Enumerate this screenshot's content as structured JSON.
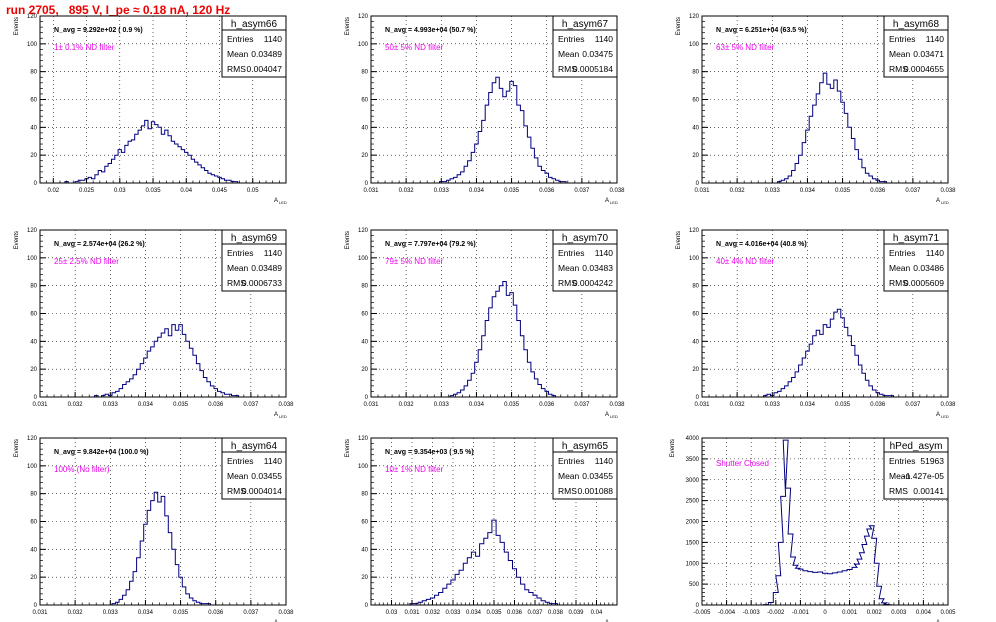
{
  "run_title": "run 2705,   895 V, I_pe ≈ 0.18 nA, 120 Hz",
  "colors": {
    "title": "#ee0000",
    "histogram": "#000080",
    "filter_label": "#ee00ee",
    "frame": "#000000",
    "grid": "#000000"
  },
  "axis_titles": {
    "y": "Events",
    "x": "A",
    "x_sub": "LED"
  },
  "stats_labels": {
    "entries": "Entries",
    "mean": "Mean",
    "rms": "RMS"
  },
  "chart_data": [
    {
      "type": "bar",
      "name": "h_asym66",
      "navg": "N_avg = 9.292e+02 ( 0.9 %)",
      "filter": "1± 0.1% ND filter",
      "stats": {
        "entries": "1140",
        "mean": "0.03489",
        "rms": "0.004047"
      },
      "xlim": [
        0.018,
        0.055
      ],
      "ylim": [
        0,
        120
      ],
      "xticks": [
        0.02,
        0.025,
        0.03,
        0.035,
        0.04,
        0.045,
        0.05
      ],
      "xtick_labels": [
        "0.02",
        "0.025",
        "0.03",
        "0.035",
        "0.04",
        "0.045",
        "0.05"
      ],
      "yticks": [
        0,
        20,
        40,
        60,
        80,
        100,
        120
      ],
      "grid": true,
      "x": [
        0.022,
        0.0225,
        0.023,
        0.0235,
        0.024,
        0.0245,
        0.025,
        0.0255,
        0.026,
        0.0265,
        0.027,
        0.0275,
        0.028,
        0.0285,
        0.029,
        0.0295,
        0.03,
        0.0305,
        0.031,
        0.0315,
        0.032,
        0.0325,
        0.033,
        0.0335,
        0.034,
        0.0345,
        0.035,
        0.0355,
        0.036,
        0.0365,
        0.037,
        0.0375,
        0.038,
        0.0385,
        0.039,
        0.0395,
        0.04,
        0.0405,
        0.041,
        0.0415,
        0.042,
        0.0425,
        0.043,
        0.0435,
        0.044,
        0.0445,
        0.045,
        0.0455,
        0.046,
        0.0465,
        0.047,
        0.0475,
        0.048
      ],
      "values": [
        1,
        0,
        0,
        1,
        2,
        2,
        3,
        4,
        3,
        6,
        9,
        8,
        12,
        14,
        17,
        20,
        24,
        22,
        27,
        30,
        31,
        35,
        38,
        41,
        45,
        39,
        44,
        42,
        40,
        35,
        38,
        34,
        30,
        28,
        26,
        24,
        22,
        20,
        17,
        15,
        13,
        11,
        9,
        7,
        6,
        5,
        4,
        3,
        2,
        2,
        1,
        1,
        0
      ]
    },
    {
      "type": "bar",
      "name": "h_asym67",
      "navg": "N_avg = 4.993e+04 (50.7 %)",
      "filter": "50± 5% ND filter",
      "stats": {
        "entries": "1140",
        "mean": "0.03475",
        "rms": "0.0005184"
      },
      "xlim": [
        0.031,
        0.038
      ],
      "ylim": [
        0,
        120
      ],
      "xticks": [
        0.031,
        0.032,
        0.033,
        0.034,
        0.035,
        0.036,
        0.037,
        0.038
      ],
      "xtick_labels": [
        "0.031",
        "0.032",
        "0.033",
        "0.034",
        "0.035",
        "0.036",
        "0.037",
        "0.038"
      ],
      "yticks": [
        0,
        20,
        40,
        60,
        80,
        100,
        120
      ],
      "grid": true,
      "x": [
        0.033,
        0.0331,
        0.0332,
        0.0333,
        0.0334,
        0.0335,
        0.0336,
        0.0337,
        0.0338,
        0.0339,
        0.034,
        0.0341,
        0.0342,
        0.0343,
        0.0344,
        0.0345,
        0.0346,
        0.0347,
        0.0348,
        0.0349,
        0.035,
        0.0351,
        0.0352,
        0.0353,
        0.0354,
        0.0355,
        0.0356,
        0.0357,
        0.0358,
        0.0359,
        0.036,
        0.0361,
        0.0362,
        0.0363,
        0.0364,
        0.0365
      ],
      "values": [
        1,
        1,
        2,
        3,
        4,
        6,
        8,
        12,
        16,
        22,
        28,
        37,
        45,
        56,
        65,
        72,
        76,
        68,
        62,
        66,
        73,
        70,
        56,
        52,
        41,
        33,
        25,
        18,
        12,
        9,
        7,
        4,
        3,
        2,
        1,
        1
      ]
    },
    {
      "type": "bar",
      "name": "h_asym68",
      "navg": "N_avg = 6.251e+04 (63.5 %)",
      "filter": "63± 5% ND filter",
      "stats": {
        "entries": "1140",
        "mean": "0.03471",
        "rms": "0.0004655"
      },
      "xlim": [
        0.031,
        0.038
      ],
      "ylim": [
        0,
        120
      ],
      "xticks": [
        0.031,
        0.032,
        0.033,
        0.034,
        0.035,
        0.036,
        0.037,
        0.038
      ],
      "xtick_labels": [
        "0.031",
        "0.032",
        "0.033",
        "0.034",
        "0.035",
        "0.036",
        "0.037",
        "0.038"
      ],
      "yticks": [
        0,
        20,
        40,
        60,
        80,
        100,
        120
      ],
      "grid": true,
      "x": [
        0.0332,
        0.0333,
        0.0334,
        0.0335,
        0.0336,
        0.0337,
        0.0338,
        0.0339,
        0.034,
        0.0341,
        0.0342,
        0.0343,
        0.0344,
        0.0345,
        0.0346,
        0.0347,
        0.0348,
        0.0349,
        0.035,
        0.0351,
        0.0352,
        0.0353,
        0.0354,
        0.0355,
        0.0356,
        0.0357,
        0.0358,
        0.0359,
        0.036,
        0.0361,
        0.0362
      ],
      "values": [
        1,
        2,
        3,
        5,
        9,
        14,
        20,
        29,
        38,
        48,
        56,
        64,
        72,
        79,
        71,
        68,
        74,
        66,
        58,
        50,
        40,
        32,
        24,
        17,
        11,
        7,
        5,
        3,
        2,
        1,
        1
      ]
    },
    {
      "type": "bar",
      "name": "h_asym69",
      "navg": "N_avg = 2.574e+04 (26.2 %)",
      "filter": "25± 2.5% ND filter",
      "stats": {
        "entries": "1140",
        "mean": "0.03489",
        "rms": "0.0006733"
      },
      "xlim": [
        0.031,
        0.038
      ],
      "ylim": [
        0,
        120
      ],
      "xticks": [
        0.031,
        0.032,
        0.033,
        0.034,
        0.035,
        0.036,
        0.037,
        0.038
      ],
      "xtick_labels": [
        "0.031",
        "0.032",
        "0.033",
        "0.034",
        "0.035",
        "0.036",
        "0.037",
        "0.038"
      ],
      "yticks": [
        0,
        20,
        40,
        60,
        80,
        100,
        120
      ],
      "grid": true,
      "x": [
        0.0326,
        0.0327,
        0.0328,
        0.0329,
        0.033,
        0.0331,
        0.0332,
        0.0333,
        0.0334,
        0.0335,
        0.0336,
        0.0337,
        0.0338,
        0.0339,
        0.034,
        0.0341,
        0.0342,
        0.0343,
        0.0344,
        0.0345,
        0.0346,
        0.0347,
        0.0348,
        0.0349,
        0.035,
        0.0351,
        0.0352,
        0.0353,
        0.0354,
        0.0355,
        0.0356,
        0.0357,
        0.0358,
        0.0359,
        0.036,
        0.0361,
        0.0362,
        0.0363,
        0.0364,
        0.0365,
        0.0366
      ],
      "values": [
        1,
        0,
        1,
        2,
        1,
        3,
        4,
        6,
        9,
        11,
        13,
        16,
        20,
        24,
        28,
        33,
        36,
        40,
        43,
        46,
        49,
        44,
        52,
        48,
        52,
        45,
        40,
        35,
        30,
        24,
        19,
        14,
        11,
        8,
        6,
        4,
        3,
        2,
        2,
        1,
        1
      ]
    },
    {
      "type": "bar",
      "name": "h_asym70",
      "navg": "N_avg = 7.797e+04 (79.2 %)",
      "filter": "79± 5% ND filter",
      "stats": {
        "entries": "1140",
        "mean": "0.03483",
        "rms": "0.0004242"
      },
      "xlim": [
        0.031,
        0.038
      ],
      "ylim": [
        0,
        120
      ],
      "xticks": [
        0.031,
        0.032,
        0.033,
        0.034,
        0.035,
        0.036,
        0.037,
        0.038
      ],
      "xtick_labels": [
        "0.031",
        "0.032",
        "0.033",
        "0.034",
        "0.035",
        "0.036",
        "0.037",
        "0.038"
      ],
      "yticks": [
        0,
        20,
        40,
        60,
        80,
        100,
        120
      ],
      "grid": true,
      "x": [
        0.0333,
        0.0334,
        0.0335,
        0.0336,
        0.0337,
        0.0338,
        0.0339,
        0.034,
        0.0341,
        0.0342,
        0.0343,
        0.0344,
        0.0345,
        0.0346,
        0.0347,
        0.0348,
        0.0349,
        0.035,
        0.0351,
        0.0352,
        0.0353,
        0.0354,
        0.0355,
        0.0356,
        0.0357,
        0.0358,
        0.0359,
        0.036,
        0.0361,
        0.0362
      ],
      "values": [
        1,
        2,
        3,
        5,
        8,
        12,
        17,
        25,
        34,
        44,
        55,
        64,
        72,
        76,
        80,
        83,
        73,
        75,
        66,
        55,
        44,
        34,
        25,
        18,
        13,
        9,
        6,
        4,
        2,
        1
      ]
    },
    {
      "type": "bar",
      "name": "h_asym71",
      "navg": "N_avg = 4.016e+04 (40.8 %)",
      "filter": "40± 4% ND filter",
      "stats": {
        "entries": "1140",
        "mean": "0.03486",
        "rms": "0.0005609"
      },
      "xlim": [
        0.031,
        0.038
      ],
      "ylim": [
        0,
        120
      ],
      "xticks": [
        0.031,
        0.032,
        0.033,
        0.034,
        0.035,
        0.036,
        0.037,
        0.038
      ],
      "xtick_labels": [
        "0.031",
        "0.032",
        "0.033",
        "0.034",
        "0.035",
        "0.036",
        "0.037",
        "0.038"
      ],
      "yticks": [
        0,
        20,
        40,
        60,
        80,
        100,
        120
      ],
      "grid": true,
      "x": [
        0.0328,
        0.0329,
        0.033,
        0.0331,
        0.0332,
        0.0333,
        0.0334,
        0.0335,
        0.0336,
        0.0337,
        0.0338,
        0.0339,
        0.034,
        0.0341,
        0.0342,
        0.0343,
        0.0344,
        0.0345,
        0.0346,
        0.0347,
        0.0348,
        0.0349,
        0.035,
        0.0351,
        0.0352,
        0.0353,
        0.0354,
        0.0355,
        0.0356,
        0.0357,
        0.0358,
        0.0359,
        0.036,
        0.0361,
        0.0362,
        0.0363,
        0.0364
      ],
      "values": [
        1,
        2,
        1,
        3,
        4,
        6,
        8,
        11,
        14,
        18,
        23,
        28,
        33,
        38,
        44,
        48,
        45,
        52,
        50,
        56,
        61,
        63,
        57,
        50,
        44,
        37,
        30,
        23,
        17,
        12,
        8,
        5,
        3,
        2,
        1,
        1,
        1
      ]
    },
    {
      "type": "bar",
      "name": "h_asym64",
      "navg": "N_avg = 9.842e+04 (100.0 %)",
      "filter": "100% (No filter)",
      "stats": {
        "entries": "1140",
        "mean": "0.03455",
        "rms": "0.0004014"
      },
      "xlim": [
        0.031,
        0.038
      ],
      "ylim": [
        0,
        120
      ],
      "xticks": [
        0.031,
        0.032,
        0.033,
        0.034,
        0.035,
        0.036,
        0.037,
        0.038
      ],
      "xtick_labels": [
        "0.031",
        "0.032",
        "0.033",
        "0.034",
        "0.035",
        "0.036",
        "0.037",
        "0.038"
      ],
      "yticks": [
        0,
        20,
        40,
        60,
        80,
        100,
        120
      ],
      "grid": true,
      "x": [
        0.0331,
        0.0332,
        0.0333,
        0.0334,
        0.0335,
        0.0336,
        0.0337,
        0.0338,
        0.0339,
        0.034,
        0.0341,
        0.0342,
        0.0343,
        0.0344,
        0.0345,
        0.0346,
        0.0347,
        0.0348,
        0.0349,
        0.035,
        0.0351,
        0.0352,
        0.0353,
        0.0354,
        0.0355,
        0.0356,
        0.0357,
        0.0358,
        0.0359
      ],
      "values": [
        1,
        2,
        4,
        7,
        11,
        17,
        24,
        34,
        46,
        58,
        68,
        75,
        81,
        74,
        78,
        64,
        52,
        40,
        29,
        20,
        13,
        8,
        5,
        3,
        2,
        1,
        1,
        1,
        0
      ]
    },
    {
      "type": "bar",
      "name": "h_asym65",
      "navg": "N_avg = 9.354e+03 ( 9.5 %)",
      "filter": "10± 1% ND filter",
      "stats": {
        "entries": "1140",
        "mean": "0.03455",
        "rms": "0.001088"
      },
      "xlim": [
        0.029,
        0.041
      ],
      "ylim": [
        0,
        120
      ],
      "xticks": [
        0.03,
        0.031,
        0.032,
        0.033,
        0.034,
        0.035,
        0.036,
        0.037,
        0.038,
        0.039,
        0.04
      ],
      "xtick_labels": [
        "0.03",
        "0.031",
        "0.032",
        "0.033",
        "0.034",
        "0.035",
        "0.036",
        "0.037",
        "0.038",
        "0.039",
        "0.04"
      ],
      "yticks": [
        0,
        20,
        40,
        60,
        80,
        100,
        120
      ],
      "grid": true,
      "x": [
        0.031,
        0.0312,
        0.0314,
        0.0316,
        0.0318,
        0.032,
        0.0322,
        0.0324,
        0.0326,
        0.0328,
        0.033,
        0.0332,
        0.0334,
        0.0336,
        0.0338,
        0.034,
        0.0342,
        0.0344,
        0.0346,
        0.0348,
        0.035,
        0.0352,
        0.0354,
        0.0356,
        0.0358,
        0.036,
        0.0362,
        0.0364,
        0.0366,
        0.0368,
        0.037,
        0.0372,
        0.0374,
        0.0376,
        0.0378,
        0.038
      ],
      "values": [
        1,
        1,
        2,
        3,
        4,
        5,
        7,
        9,
        12,
        15,
        18,
        22,
        25,
        30,
        34,
        38,
        35,
        44,
        48,
        52,
        61,
        50,
        45,
        38,
        32,
        26,
        20,
        15,
        11,
        9,
        7,
        5,
        3,
        2,
        1,
        1
      ]
    },
    {
      "type": "bar",
      "name": "hPed_asym",
      "navg": "",
      "filter": "Shutter Closed",
      "stats": {
        "entries": "51963",
        "mean": "-1.427e-05",
        "rms": "0.00141"
      },
      "xlim": [
        -0.005,
        0.005
      ],
      "ylim": [
        0,
        4000
      ],
      "xticks": [
        -0.005,
        -0.004,
        -0.003,
        -0.002,
        -0.001,
        0,
        0.001,
        0.002,
        0.003,
        0.004,
        0.005
      ],
      "xtick_labels": [
        "-0.005",
        "-0.004",
        "-0.003",
        "-0.002",
        "-0.001",
        "0",
        "0.001",
        "0.002",
        "0.003",
        "0.004",
        "0.005"
      ],
      "yticks": [
        0,
        500,
        1000,
        1500,
        2000,
        2500,
        3000,
        3500,
        4000
      ],
      "grid": true,
      "x": [
        -0.0024,
        -0.0022,
        -0.002,
        -0.0019,
        -0.0018,
        -0.0017,
        -0.0016,
        -0.0015,
        -0.0014,
        -0.0013,
        -0.0012,
        -0.0011,
        -0.001,
        -0.0008,
        -0.0006,
        -0.0004,
        -0.0002,
        0.0,
        0.0002,
        0.0004,
        0.0006,
        0.0008,
        0.001,
        0.0012,
        0.0013,
        0.0014,
        0.0015,
        0.0016,
        0.0017,
        0.0018,
        0.0019,
        0.002,
        0.0021,
        0.0022,
        0.0023,
        0.0024,
        0.0025,
        0.0026
      ],
      "values": [
        10,
        60,
        300,
        700,
        1500,
        2600,
        3950,
        2800,
        1700,
        1150,
        950,
        880,
        860,
        820,
        800,
        780,
        790,
        760,
        750,
        770,
        790,
        820,
        850,
        900,
        980,
        1100,
        1250,
        1450,
        1650,
        1820,
        1900,
        1600,
        1000,
        450,
        150,
        50,
        15,
        5
      ]
    }
  ]
}
